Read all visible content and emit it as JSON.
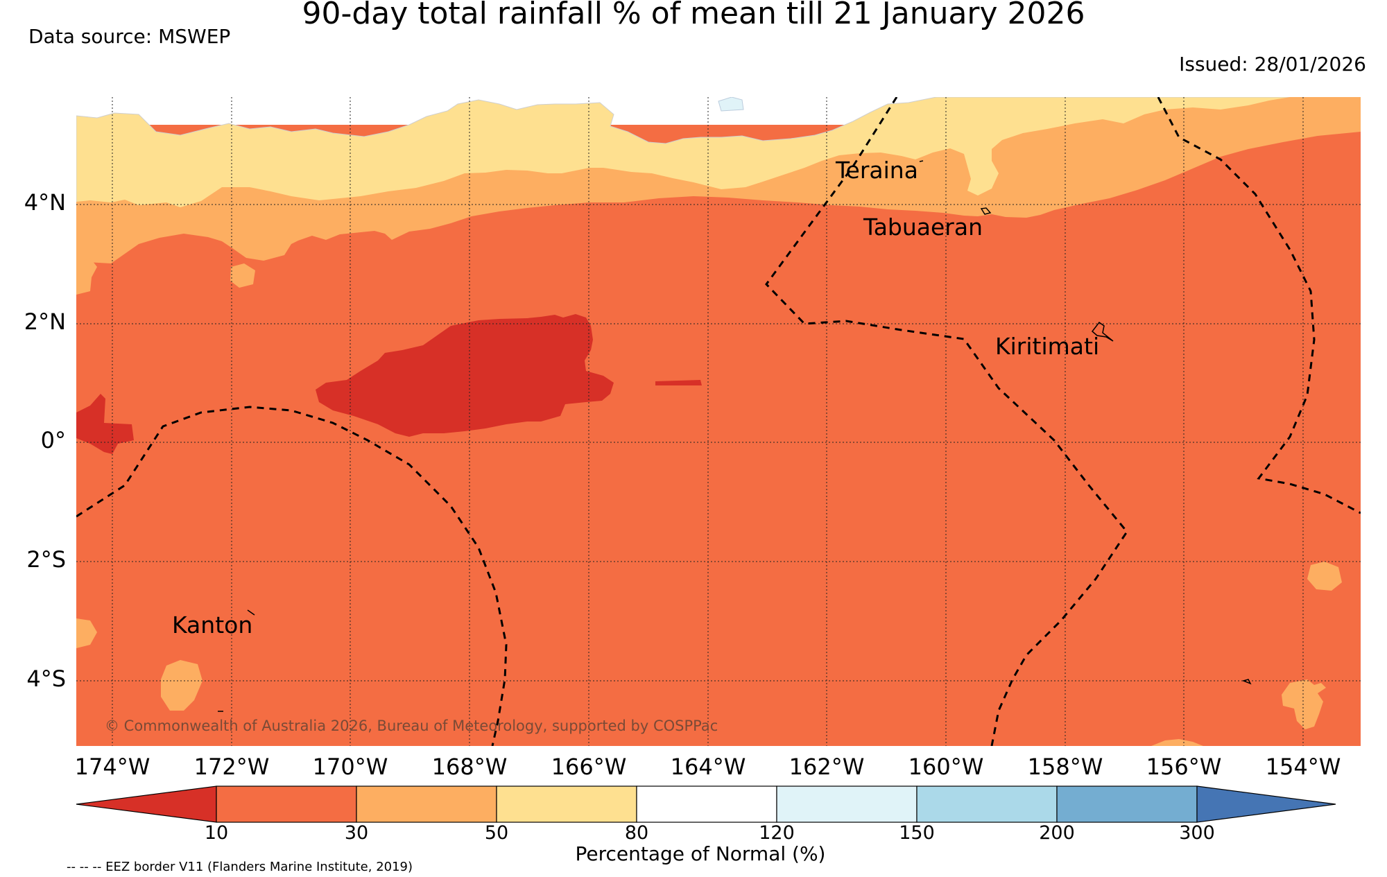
{
  "title": "90-day total rainfall % of mean till 21 January 2026",
  "data_source": "Data source: MSWEP",
  "issued": "Issued: 28/01/2026",
  "copyright": "© Commonwealth of Australia 2026, Bureau of Meteorology, supported by COSPPac",
  "eez_note": "-- -- -- EEZ border V11 (Flanders Marine Institute, 2019)",
  "lat_labels": [
    "4°N",
    "2°N",
    "0°",
    "2°S",
    "4°S"
  ],
  "lon_labels": [
    "174°W",
    "172°W",
    "170°W",
    "168°W",
    "166°W",
    "164°W",
    "162°W",
    "160°W",
    "158°W",
    "156°W",
    "154°W"
  ],
  "places": {
    "teraina": "Teraina",
    "tabuaeran": "Tabuaeran",
    "kiritimati": "Kiritimati",
    "kanton": "Kanton"
  },
  "colorbar": {
    "title": "Percentage of Normal (%)",
    "ticks": [
      "10",
      "30",
      "50",
      "80",
      "120",
      "150",
      "200",
      "300"
    ],
    "colors": {
      "below_10": "#d73027",
      "c10_30": "#f46d43",
      "c30_50": "#fdae61",
      "c50_80": "#fee090",
      "c80_120": "#ffffff",
      "c120_150": "#e0f3f8",
      "c150_200": "#abd9e9",
      "c200_300": "#74add1",
      "above_300": "#4575b4"
    }
  }
}
